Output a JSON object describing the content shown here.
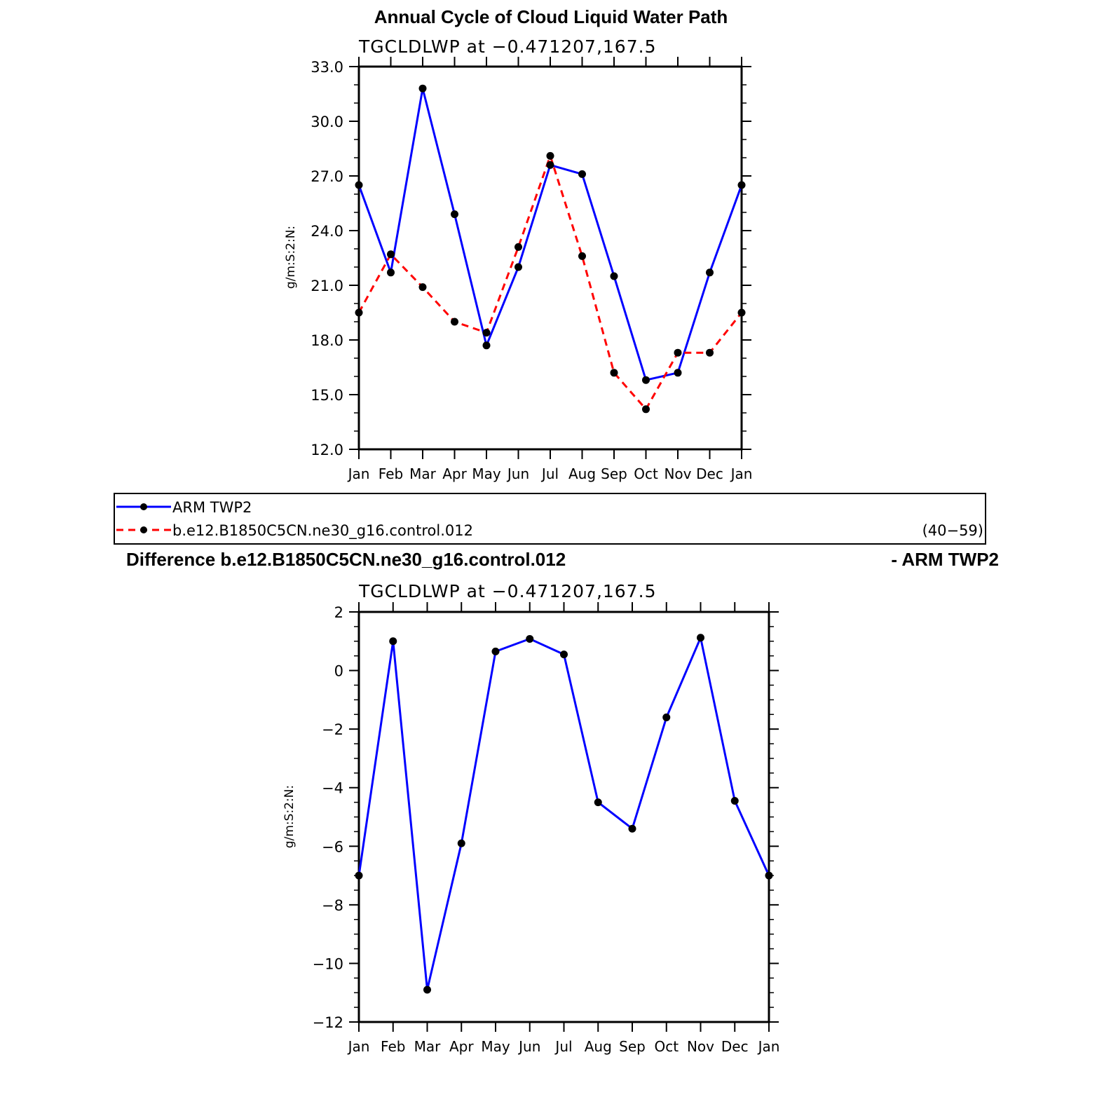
{
  "chart_data": [
    {
      "type": "line",
      "title": "Annual Cycle of Cloud Liquid Water Path",
      "subtitle": "TGCLDLWP  at  −0.471207,167.5",
      "ylabel": "g/m:S:2:N:",
      "xlabel": "",
      "categories": [
        "Jan",
        "Feb",
        "Mar",
        "Apr",
        "May",
        "Jun",
        "Jul",
        "Aug",
        "Sep",
        "Oct",
        "Nov",
        "Dec",
        "Jan"
      ],
      "ylim": [
        12,
        33
      ],
      "yticks": [
        "12.0",
        "15.0",
        "18.0",
        "21.0",
        "24.0",
        "27.0",
        "30.0",
        "33.0"
      ],
      "series": [
        {
          "name": "ARM  TWP2",
          "color": "#0000ff",
          "dash": "solid",
          "values": [
            26.5,
            21.7,
            31.8,
            24.9,
            17.7,
            22.0,
            27.6,
            27.1,
            21.5,
            15.8,
            16.2,
            21.7,
            26.5
          ]
        },
        {
          "name": "b.e12.B1850C5CN.ne30_g16.control.012",
          "color": "#ff0000",
          "dash": "dashed",
          "values": [
            19.5,
            22.7,
            20.9,
            19.0,
            18.4,
            23.1,
            28.1,
            22.6,
            16.2,
            14.2,
            17.3,
            17.3,
            19.5
          ]
        }
      ]
    },
    {
      "type": "line",
      "title": "Difference b.e12.B1850C5CN.ne30_g16.control.012",
      "title_right": "- ARM TWP2",
      "subtitle": "TGCLDLWP  at  −0.471207,167.5",
      "ylabel": "g/m:S:2:N:",
      "xlabel": "",
      "categories": [
        "Jan",
        "Feb",
        "Mar",
        "Apr",
        "May",
        "Jun",
        "Jul",
        "Aug",
        "Sep",
        "Oct",
        "Nov",
        "Dec",
        "Jan"
      ],
      "ylim": [
        -12,
        2
      ],
      "yticks": [
        "−12",
        "−10",
        "−8",
        "−6",
        "−4",
        "−2",
        "0",
        "2"
      ],
      "series": [
        {
          "color": "#0000ff",
          "dash": "solid",
          "values": [
            -7.0,
            1.0,
            -10.9,
            -5.9,
            0.65,
            1.08,
            0.55,
            -4.5,
            -5.4,
            -1.6,
            1.12,
            -4.45,
            -7.0
          ]
        }
      ]
    }
  ],
  "legend": {
    "entries": [
      "ARM  TWP2",
      "b.e12.B1850C5CN.ne30_g16.control.012"
    ],
    "years": "(40−59)"
  }
}
